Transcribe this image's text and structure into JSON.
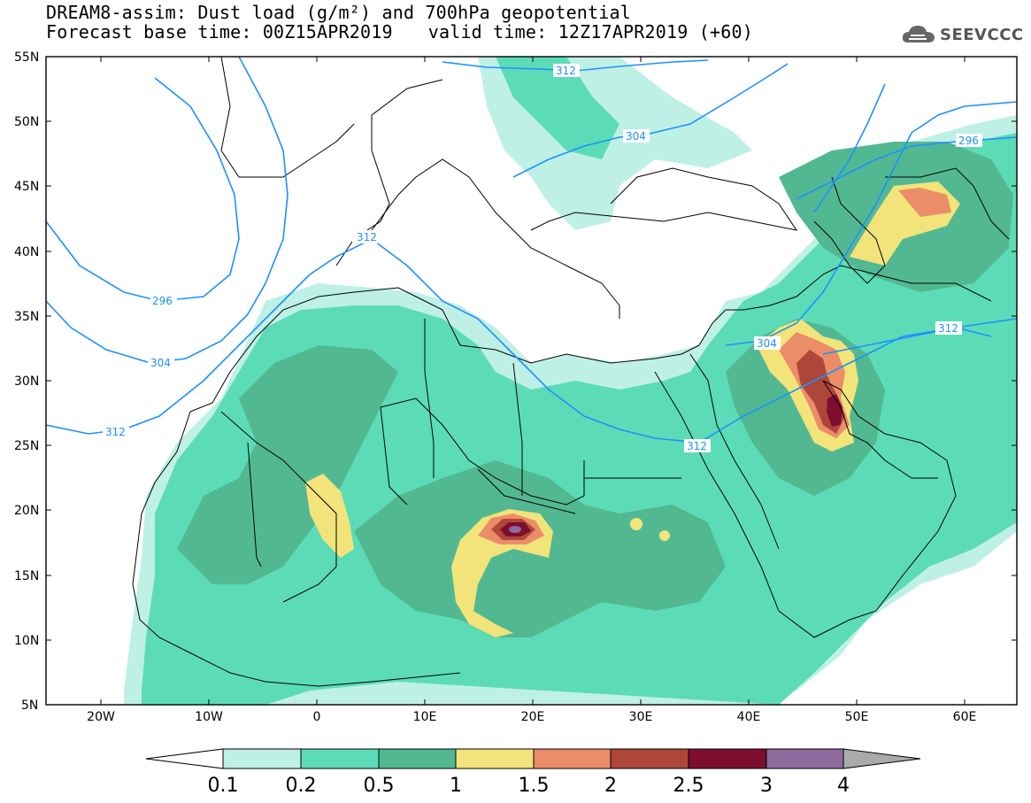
{
  "title": {
    "line1": "DREAM8-assim: Dust load (g/m²) and 700hPa geopotential",
    "forecast_base": "Forecast base time: 00Z15APR2019",
    "valid_time": "valid time: 12Z17APR2019 (+60)"
  },
  "logo": {
    "text": "SEEVCCC",
    "icon": "cloud-icon"
  },
  "axes": {
    "lat_labels": [
      "55N",
      "50N",
      "45N",
      "40N",
      "35N",
      "30N",
      "25N",
      "20N",
      "15N",
      "10N",
      "5N"
    ],
    "lon_labels": [
      "20W",
      "10W",
      "0",
      "10E",
      "20E",
      "30E",
      "40E",
      "50E",
      "60E"
    ]
  },
  "contours": {
    "color": "#1e90ff",
    "labels": [
      "312",
      "304",
      "296",
      "296",
      "304",
      "312",
      "312",
      "304",
      "312",
      "312"
    ]
  },
  "colorbar": {
    "ticks": [
      "0.1",
      "0.2",
      "0.5",
      "1",
      "1.5",
      "2",
      "2.5",
      "3",
      "4"
    ],
    "colors": [
      "#ffffff",
      "#bff0e6",
      "#5cdcb6",
      "#52b891",
      "#f2e47a",
      "#ec8d69",
      "#ae4739",
      "#7d0e30",
      "#8f6a9e",
      "#aaaaaa"
    ]
  },
  "dust_colors": {
    "light": "#bff0e6",
    "mid": "#5cdcb6",
    "dark": "#52b891",
    "yellow": "#f2e47a",
    "orange": "#ec8d69",
    "red": "#ae4739",
    "maroon": "#7d0e30",
    "purple": "#8f6a9e"
  }
}
